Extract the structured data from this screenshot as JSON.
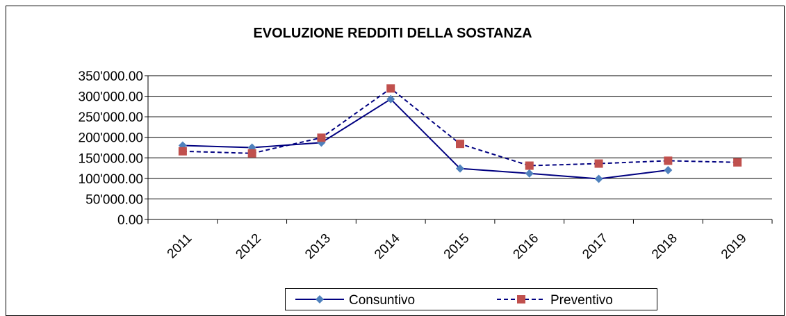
{
  "chart_data": {
    "type": "line",
    "title": "EVOLUZIONE REDDITI DELLA SOSTANZA",
    "categories": [
      "2011",
      "2012",
      "2013",
      "2014",
      "2015",
      "2016",
      "2017",
      "2018",
      "2019"
    ],
    "series": [
      {
        "name": "Consuntivo",
        "color": "#000080",
        "marker": "diamond",
        "marker_color": "#4f81bd",
        "dash": false,
        "values": [
          180000,
          175000,
          187000,
          293000,
          124000,
          112000,
          99000,
          120000,
          null
        ]
      },
      {
        "name": "Preventivo",
        "color": "#000080",
        "marker": "square",
        "marker_color": "#c0504d",
        "dash": true,
        "values": [
          166000,
          161000,
          199000,
          319000,
          184000,
          131000,
          136000,
          143000,
          139000
        ]
      }
    ],
    "ylim": [
      0,
      350000
    ],
    "yticks": [
      {
        "value": 0,
        "label": "0.00"
      },
      {
        "value": 50000,
        "label": "50'000.00"
      },
      {
        "value": 100000,
        "label": "100'000.00"
      },
      {
        "value": 150000,
        "label": "150'000.00"
      },
      {
        "value": 200000,
        "label": "200'000.00"
      },
      {
        "value": 250000,
        "label": "250'000.00"
      },
      {
        "value": 300000,
        "label": "300'000.00"
      },
      {
        "value": 350000,
        "label": "350'000.00"
      }
    ],
    "grid": true,
    "legend": "bottom"
  }
}
